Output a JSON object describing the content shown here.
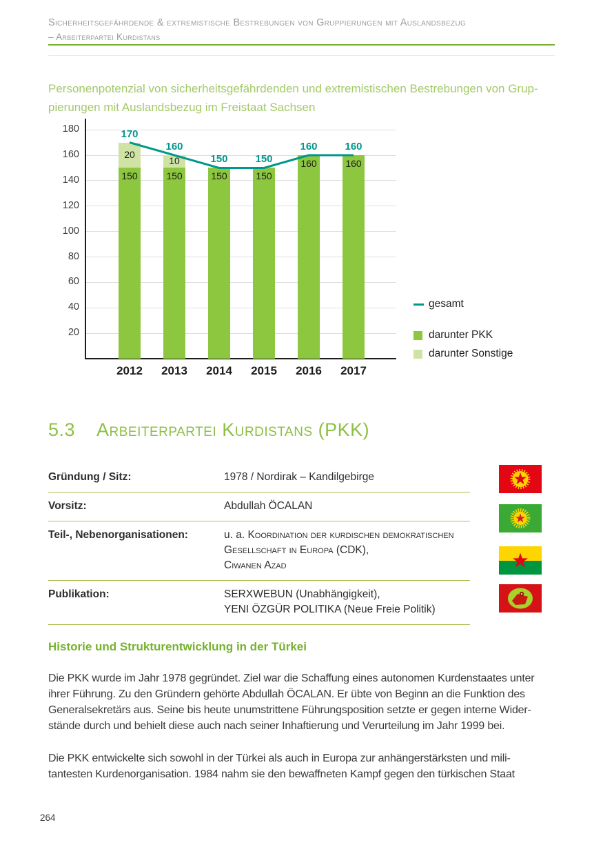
{
  "colors": {
    "brand_green": "#76b22d",
    "title_green": "#a2ca68",
    "section_green": "#8dc044",
    "rule_olive": "#a9bf4f",
    "teal": "#00978d",
    "bar_green": "#8dc63f",
    "bar_light_green": "#cfe3a5",
    "text_dark": "#3a3a38",
    "header_gray": "#9c9b9b"
  },
  "header": {
    "line1": "Sicherheitsgefährdende & extremistische Bestrebungen von Gruppierungen mit Auslandsbezug",
    "line2": "– Arbeiterpartei Kurdistans"
  },
  "chart_data": {
    "type": "bar",
    "stacked": true,
    "title": "Personenpotenzial von sicherheitsgefährdenden und extremistischen Bestrebungen von Gruppierungen mit Auslandsbezug im Freistaat Sachsen",
    "title_lines": [
      "Personenpotenzial von sicherheitsgefährdenden und extremistischen Bestrebungen von Grup-",
      "pierungen mit Auslandsbezug im Freistaat Sachsen"
    ],
    "categories": [
      "2012",
      "2013",
      "2014",
      "2015",
      "2016",
      "2017"
    ],
    "series": [
      {
        "name": "darunter PKK",
        "color": "#8dc63f",
        "values": [
          150,
          150,
          150,
          150,
          160,
          160
        ]
      },
      {
        "name": "darunter Sonstige",
        "color": "#cfe3a5",
        "values": [
          20,
          10,
          0,
          0,
          0,
          0
        ]
      }
    ],
    "line": {
      "name": "gesamt",
      "color": "#00978d",
      "values": [
        170,
        160,
        150,
        150,
        160,
        160
      ]
    },
    "yticks": [
      20,
      40,
      60,
      80,
      100,
      120,
      140,
      160,
      180
    ],
    "ylim": [
      0,
      190
    ],
    "grid": true,
    "legend_position": "right"
  },
  "section": {
    "number": "5.3",
    "title": "Arbeiterpartei Kurdistans (PKK)"
  },
  "infobox": {
    "rows": [
      {
        "label": "Gründung / Sitz:",
        "lines": [
          [
            {
              "t": "1978 / Nordirak – Kandilgebirge"
            }
          ]
        ]
      },
      {
        "label": "Vorsitz:",
        "lines": [
          [
            {
              "t": "Abdullah ÖCALAN"
            }
          ]
        ]
      },
      {
        "label": "Teil-, Nebenorganisationen:",
        "lines": [
          [
            {
              "t": "u. a. "
            },
            {
              "t": "Koordination der kurdischen demokratischen",
              "sc": true
            }
          ],
          [
            {
              "t": "Gesellschaft in Europa",
              "sc": true
            },
            {
              "t": " (CDK),"
            }
          ],
          [
            {
              "t": "Ciwanen Azad",
              "sc": true
            }
          ]
        ]
      },
      {
        "label": "Publikation:",
        "lines": [
          [
            {
              "t": "SERXWEBUN (Unabhängigkeit),"
            }
          ],
          [
            {
              "t": "YENI ÖZGÜR POLITIKA (Neue Freie Politik)"
            }
          ]
        ]
      }
    ]
  },
  "flags": [
    {
      "name": "pkk-flag",
      "bg": "#e30613",
      "emblem": "#ffd500",
      "star": "#e30613"
    },
    {
      "name": "cdk-flag",
      "bg": "#3aaa35",
      "emblem": "#ffd500",
      "star": "#d2232a"
    },
    {
      "name": "ciwanen-azad-flag",
      "top": "#ffd500",
      "bottom": "#009640",
      "star": "#e30613"
    },
    {
      "name": "publication-logo",
      "bg": "#d51317",
      "emblem": "#a8d22a",
      "motif": "#c81a13"
    }
  ],
  "history": {
    "heading": "Historie und Strukturentwicklung in der Türkei",
    "paragraphs": [
      {
        "lines": [
          "Die PKK wurde im Jahr 1978 gegründet. Ziel war die Schaffung eines autonomen Kurdenstaates unter",
          "ihrer Führung. Zu den Gründern gehörte Abdullah ÖCALAN. Er übte von Beginn an die Funktion des",
          "Generalsekretärs aus. Seine bis heute unumstrittene Führungsposition setzte er gegen interne Wider-",
          "stände durch und behielt diese auch nach seiner Inhaftierung und Verurteilung im Jahr 1999 bei."
        ]
      },
      {
        "lines": [
          "Die PKK entwickelte sich sowohl in der Türkei als auch in Europa zur anhängerstärksten und mili-",
          "tantesten Kurdenorganisation. 1984 nahm sie den bewaffneten Kampf gegen den türkischen Staat"
        ]
      }
    ]
  },
  "footer": {
    "page_number": "264"
  }
}
